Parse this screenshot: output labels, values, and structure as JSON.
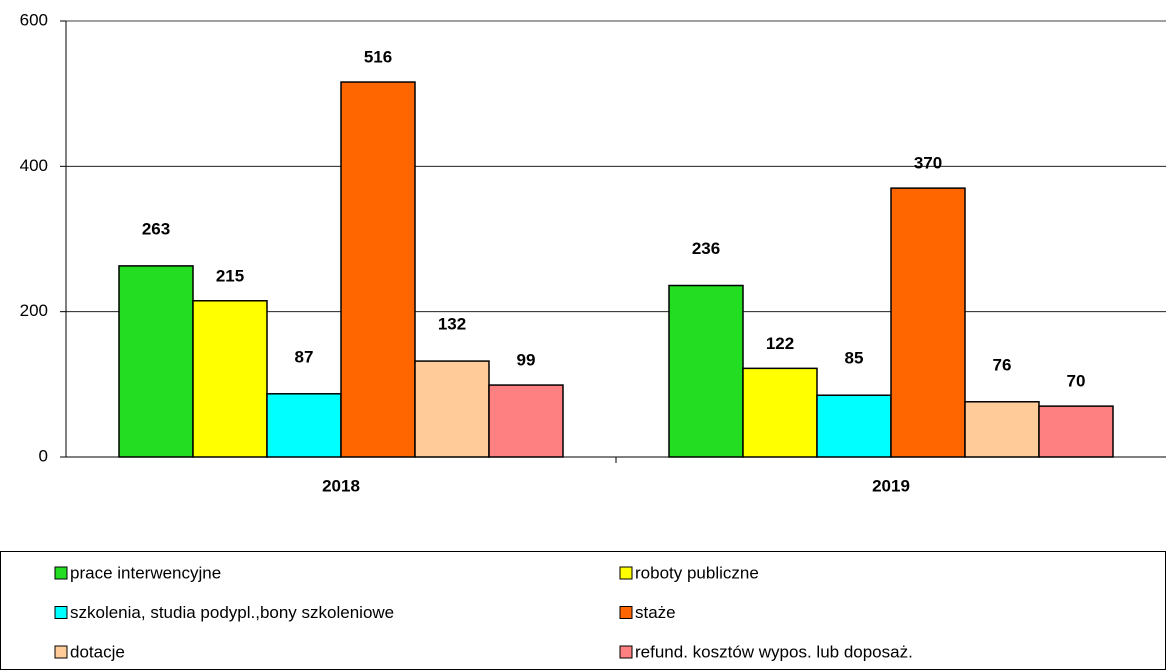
{
  "chart_data": {
    "type": "bar",
    "categories": [
      "2018",
      "2019"
    ],
    "series": [
      {
        "name": "prace interwencyjne",
        "color": "#22dd22",
        "values": [
          263,
          236
        ]
      },
      {
        "name": "roboty publiczne",
        "color": "#ffff00",
        "values": [
          215,
          122
        ]
      },
      {
        "name": "szkolenia, studia podypl.,bony szkoleniowe",
        "color": "#00ffff",
        "values": [
          87,
          85
        ]
      },
      {
        "name": "staże",
        "color": "#ff6600",
        "values": [
          516,
          370
        ]
      },
      {
        "name": "dotacje",
        "color": "#ffcc99",
        "values": [
          132,
          76
        ]
      },
      {
        "name": "refund. kosztów wypos. lub doposaż.",
        "color": "#ff8080",
        "values": [
          99,
          70
        ]
      }
    ],
    "ylim": [
      0,
      600
    ],
    "yticks": [
      0,
      200,
      400,
      600
    ],
    "grid": true
  }
}
